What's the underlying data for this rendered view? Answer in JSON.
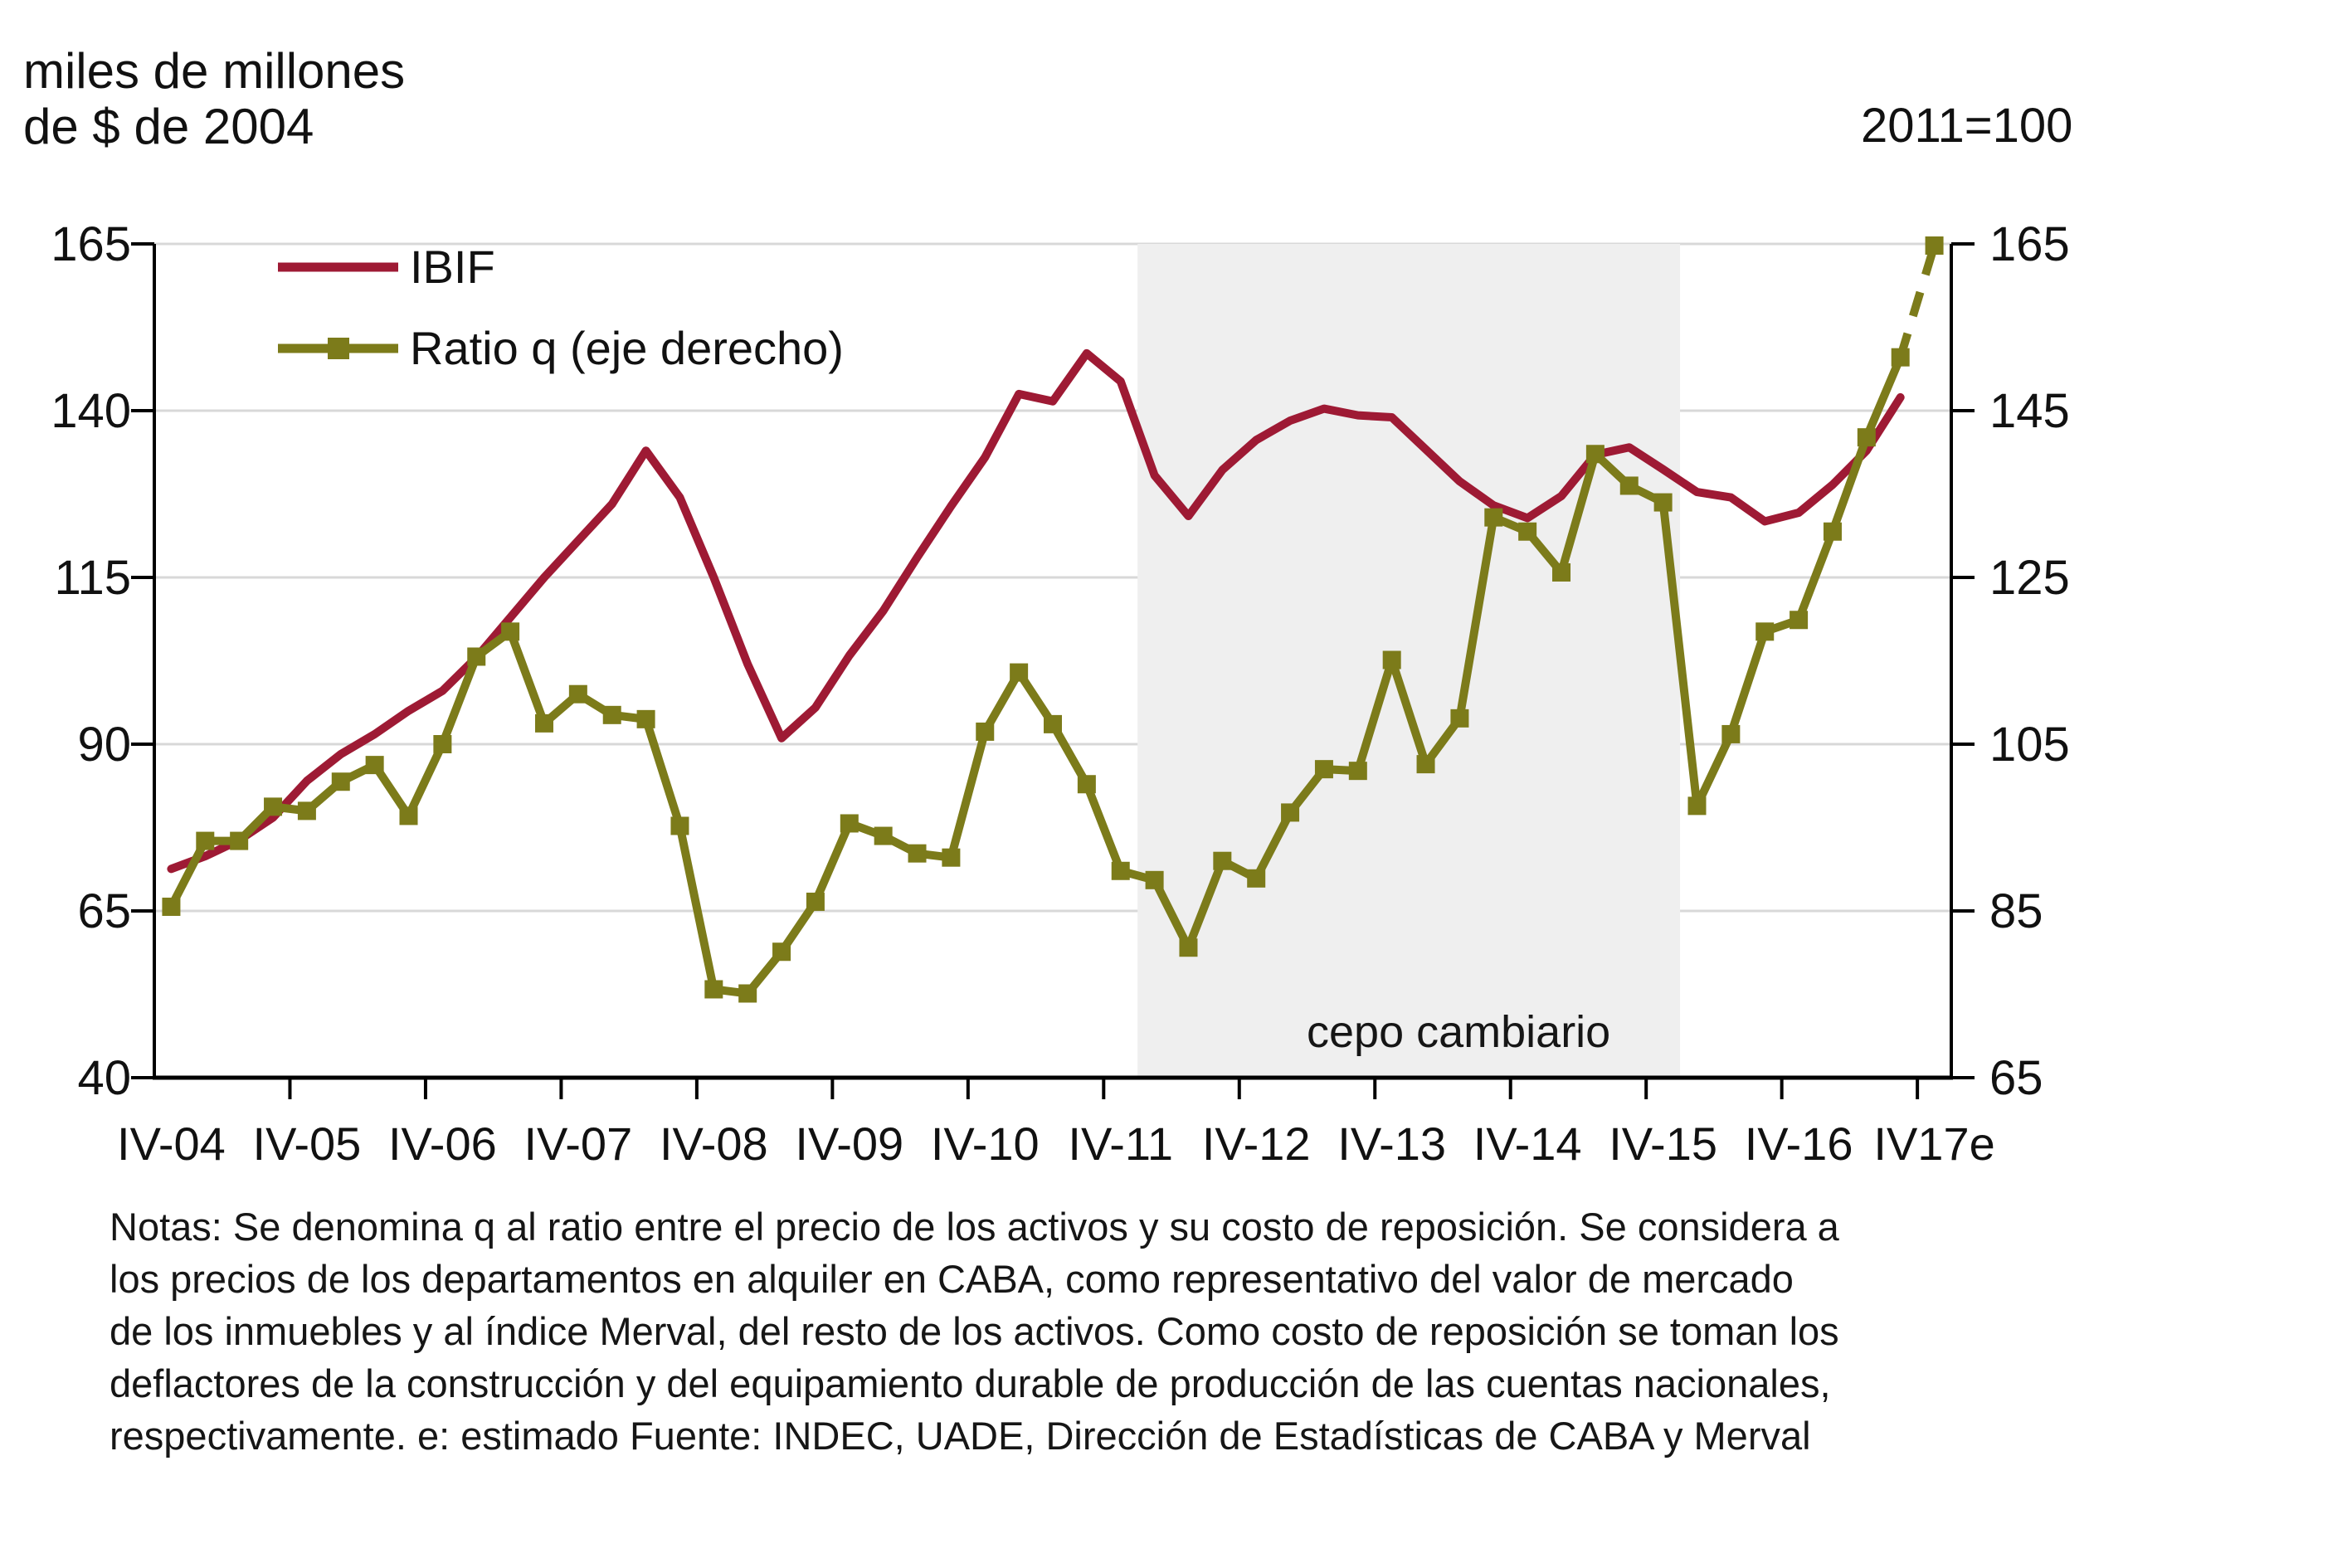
{
  "titles": {
    "left_line1": "miles de millones",
    "left_line2": "de $ de 2004",
    "right": "2011=100"
  },
  "legend": [
    {
      "label": "IBIF",
      "color": "#9E1A34",
      "marker": false
    },
    {
      "label": "Ratio q (eje derecho)",
      "color": "#7C7B1A",
      "marker": true
    }
  ],
  "notes": {
    "lines": [
      "Notas: Se denomina q al ratio entre el precio de los activos y su costo de reposición. Se considera a",
      "los precios de los departamentos en alquiler en CABA, como representativo del valor de mercado",
      "de los inmuebles y al índice Merval, del resto de los activos. Como costo de reposición se toman los",
      "deflactores de la construcción y del equipamiento durable de producción de las cuentas nacionales,",
      "respectivamente. e: estimado Fuente: INDEC, UADE, Dirección de Estadísticas de CABA y Merval"
    ]
  },
  "chart_data": {
    "type": "line",
    "title": "",
    "xlabel": "",
    "ylabel_left": "miles de millones de $ de 2004",
    "ylabel_right": "2011=100",
    "categories_count": 53,
    "x_tick_labels": [
      "IV-04",
      "IV-05",
      "IV-06",
      "IV-07",
      "IV-08",
      "IV-09",
      "IV-10",
      "IV-11",
      "IV-12",
      "IV-13",
      "IV-14",
      "IV-15",
      "IV-16",
      "IV17e"
    ],
    "label_interval": 4,
    "left_axis": {
      "min": 40,
      "max": 165,
      "ticks": [
        165,
        140,
        115,
        90,
        65,
        40
      ]
    },
    "right_axis": {
      "min": 65,
      "max": 165,
      "ticks": [
        165,
        145,
        125,
        105,
        85,
        65
      ]
    },
    "grid": true,
    "gridline_color": "#D8D8D8",
    "band": {
      "from_boundary": 29,
      "to_boundary": 45,
      "color": "#EFEFEF",
      "label": "cepo cambiario"
    },
    "series": [
      {
        "name": "IBIF",
        "axis": "left",
        "color": "#9E1A34",
        "marker": false,
        "values": [
          71.3,
          73.2,
          75.6,
          79,
          84.5,
          88.5,
          91.5,
          95,
          98,
          103,
          109,
          115,
          120.5,
          126,
          134,
          127,
          115,
          102,
          90.9,
          95.5,
          103.3,
          110,
          118,
          125.7,
          133,
          142.5,
          141.4,
          148.6,
          144.4,
          130.3,
          124.2,
          131.1,
          135.6,
          138.5,
          140.3,
          139.3,
          139,
          134.2,
          129.4,
          125.8,
          123.9,
          127.2,
          133.4,
          134.5,
          131.2,
          127.8,
          127,
          123.4,
          124.7,
          128.9,
          134,
          142
        ]
      },
      {
        "name": "Ratio q (eje derecho)",
        "axis": "right",
        "color": "#7C7B1A",
        "marker": true,
        "dashed_from_index": 51,
        "values": [
          85.5,
          93.4,
          93.4,
          97.5,
          97,
          100.5,
          102.5,
          96.4,
          105,
          115.5,
          118.5,
          107.5,
          111,
          108.5,
          108,
          95.2,
          75.6,
          75.1,
          80.1,
          86.1,
          95.5,
          94,
          91.9,
          91.4,
          106.5,
          113.6,
          107.4,
          100.2,
          89.8,
          88.7,
          80.6,
          91,
          88.9,
          96.8,
          102,
          101.8,
          115.1,
          102.6,
          108.1,
          132.2,
          130.5,
          125.6,
          139.8,
          136,
          134,
          97.6,
          106.2,
          118.5,
          119.9,
          130.5,
          141.8,
          151.4,
          164.8
        ]
      }
    ]
  },
  "layout_text": {
    "band_label_color": "#161616",
    "axis_color": "#000000",
    "tick_label_color": "#111111",
    "tick_font_size": 58,
    "x_label_font_size": 56,
    "legend_font_size": 56,
    "band_label_font_size": 54
  }
}
